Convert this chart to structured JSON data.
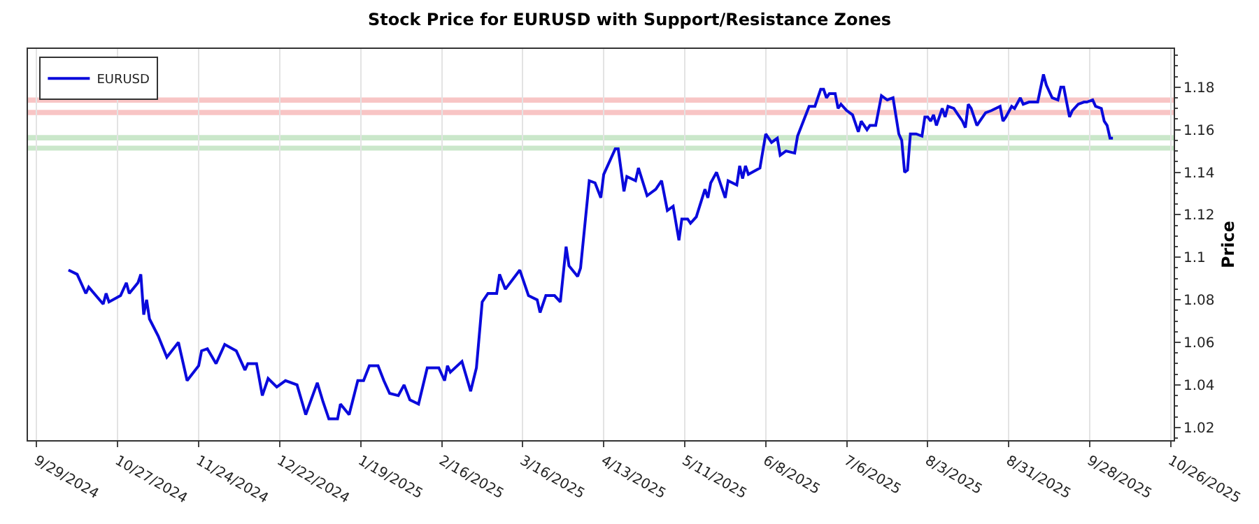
{
  "chart_data": {
    "type": "line",
    "title": "Stock Price for EURUSD with Support/Resistance Zones",
    "ylabel": "Price",
    "x": [
      "2024-10-10",
      "2024-10-13",
      "2024-10-14",
      "2024-10-16",
      "2024-10-17",
      "2024-10-22",
      "2024-10-23",
      "2024-10-24",
      "2024-10-28",
      "2024-10-30",
      "2024-10-31",
      "2024-11-03",
      "2024-11-04",
      "2024-11-05",
      "2024-11-06",
      "2024-11-07",
      "2024-11-10",
      "2024-11-13",
      "2024-11-17",
      "2024-11-20",
      "2024-11-24",
      "2024-11-25",
      "2024-11-27",
      "2024-11-30",
      "2024-12-03",
      "2024-12-07",
      "2024-12-10",
      "2024-12-11",
      "2024-12-14",
      "2024-12-16",
      "2024-12-18",
      "2024-12-21",
      "2024-12-24",
      "2024-12-28",
      "2024-12-31",
      "2025-01-04",
      "2025-01-06",
      "2025-01-08",
      "2025-01-11",
      "2025-01-12",
      "2025-01-15",
      "2025-01-18",
      "2025-01-20",
      "2025-01-22",
      "2025-01-25",
      "2025-01-27",
      "2025-01-29",
      "2025-02-01",
      "2025-02-03",
      "2025-02-05",
      "2025-02-08",
      "2025-02-11",
      "2025-02-15",
      "2025-02-17",
      "2025-02-18",
      "2025-02-19",
      "2025-02-23",
      "2025-02-26",
      "2025-02-28",
      "2025-03-02",
      "2025-03-04",
      "2025-03-07",
      "2025-03-08",
      "2025-03-10",
      "2025-03-15",
      "2025-03-18",
      "2025-03-21",
      "2025-03-22",
      "2025-03-24",
      "2025-03-27",
      "2025-03-29",
      "2025-03-31",
      "2025-04-01",
      "2025-04-04",
      "2025-04-05",
      "2025-04-08",
      "2025-04-10",
      "2025-04-12",
      "2025-04-13",
      "2025-04-17",
      "2025-04-18",
      "2025-04-20",
      "2025-04-21",
      "2025-04-24",
      "2025-04-25",
      "2025-04-28",
      "2025-05-01",
      "2025-05-03",
      "2025-05-05",
      "2025-05-07",
      "2025-05-09",
      "2025-05-10",
      "2025-05-12",
      "2025-05-13",
      "2025-05-15",
      "2025-05-18",
      "2025-05-19",
      "2025-05-20",
      "2025-05-22",
      "2025-05-25",
      "2025-05-26",
      "2025-05-29",
      "2025-05-30",
      "2025-05-31",
      "2025-06-01",
      "2025-06-02",
      "2025-06-06",
      "2025-06-08",
      "2025-06-10",
      "2025-06-12",
      "2025-06-13",
      "2025-06-15",
      "2025-06-18",
      "2025-06-19",
      "2025-06-21",
      "2025-06-23",
      "2025-06-25",
      "2025-06-27",
      "2025-06-28",
      "2025-06-29",
      "2025-06-30",
      "2025-07-02",
      "2025-07-03",
      "2025-07-04",
      "2025-07-06",
      "2025-07-08",
      "2025-07-10",
      "2025-07-11",
      "2025-07-13",
      "2025-07-14",
      "2025-07-16",
      "2025-07-18",
      "2025-07-20",
      "2025-07-22",
      "2025-07-24",
      "2025-07-25",
      "2025-07-26",
      "2025-07-27",
      "2025-07-28",
      "2025-07-30",
      "2025-08-01",
      "2025-08-02",
      "2025-08-03",
      "2025-08-04",
      "2025-08-05",
      "2025-08-06",
      "2025-08-08",
      "2025-08-09",
      "2025-08-10",
      "2025-08-12",
      "2025-08-14",
      "2025-08-15",
      "2025-08-16",
      "2025-08-17",
      "2025-08-18",
      "2025-08-20",
      "2025-08-21",
      "2025-08-23",
      "2025-08-25",
      "2025-08-28",
      "2025-08-29",
      "2025-08-30",
      "2025-09-01",
      "2025-09-02",
      "2025-09-04",
      "2025-09-05",
      "2025-09-07",
      "2025-09-10",
      "2025-09-12",
      "2025-09-13",
      "2025-09-15",
      "2025-09-17",
      "2025-09-18",
      "2025-09-19",
      "2025-09-21",
      "2025-09-22",
      "2025-09-24",
      "2025-09-26",
      "2025-09-27",
      "2025-09-29",
      "2025-09-30",
      "2025-10-02",
      "2025-10-03",
      "2025-10-04",
      "2025-10-05",
      "2025-10-06"
    ],
    "series": [
      {
        "name": "EURUSD",
        "color": "#0a0adc",
        "values": [
          1.094,
          1.092,
          1.089,
          1.083,
          1.086,
          1.078,
          1.083,
          1.079,
          1.082,
          1.088,
          1.083,
          1.088,
          1.092,
          1.073,
          1.08,
          1.071,
          1.063,
          1.053,
          1.06,
          1.042,
          1.049,
          1.056,
          1.057,
          1.05,
          1.059,
          1.056,
          1.047,
          1.05,
          1.05,
          1.035,
          1.043,
          1.039,
          1.042,
          1.04,
          1.026,
          1.041,
          1.032,
          1.024,
          1.024,
          1.031,
          1.026,
          1.042,
          1.042,
          1.049,
          1.049,
          1.042,
          1.036,
          1.035,
          1.04,
          1.033,
          1.031,
          1.048,
          1.048,
          1.042,
          1.049,
          1.046,
          1.051,
          1.037,
          1.048,
          1.079,
          1.083,
          1.083,
          1.092,
          1.085,
          1.094,
          1.082,
          1.08,
          1.074,
          1.082,
          1.082,
          1.079,
          1.105,
          1.096,
          1.091,
          1.095,
          1.136,
          1.135,
          1.128,
          1.139,
          1.151,
          1.151,
          1.131,
          1.138,
          1.136,
          1.142,
          1.129,
          1.132,
          1.136,
          1.122,
          1.124,
          1.108,
          1.118,
          1.118,
          1.116,
          1.119,
          1.132,
          1.128,
          1.135,
          1.14,
          1.128,
          1.136,
          1.134,
          1.143,
          1.137,
          1.143,
          1.139,
          1.142,
          1.158,
          1.154,
          1.156,
          1.148,
          1.15,
          1.149,
          1.157,
          1.164,
          1.171,
          1.171,
          1.179,
          1.179,
          1.175,
          1.177,
          1.177,
          1.17,
          1.172,
          1.169,
          1.167,
          1.159,
          1.164,
          1.16,
          1.162,
          1.162,
          1.176,
          1.174,
          1.175,
          1.158,
          1.155,
          1.14,
          1.141,
          1.158,
          1.158,
          1.157,
          1.166,
          1.166,
          1.164,
          1.167,
          1.162,
          1.17,
          1.166,
          1.171,
          1.17,
          1.166,
          1.164,
          1.161,
          1.172,
          1.17,
          1.162,
          1.164,
          1.168,
          1.169,
          1.171,
          1.164,
          1.166,
          1.171,
          1.17,
          1.175,
          1.172,
          1.173,
          1.173,
          1.186,
          1.181,
          1.175,
          1.174,
          1.18,
          1.18,
          1.166,
          1.169,
          1.172,
          1.173,
          1.173,
          1.174,
          1.171,
          1.17,
          1.164,
          1.162,
          1.156,
          1.156
        ]
      }
    ],
    "xlim": [
      "2024-09-26",
      "2025-10-27"
    ],
    "xticks": [
      {
        "value": "2024-09-29",
        "label": "9/29/2024"
      },
      {
        "value": "2024-10-27",
        "label": "10/27/2024"
      },
      {
        "value": "2024-11-24",
        "label": "11/24/2024"
      },
      {
        "value": "2024-12-22",
        "label": "12/22/2024"
      },
      {
        "value": "2025-01-19",
        "label": "1/19/2025"
      },
      {
        "value": "2025-02-16",
        "label": "2/16/2025"
      },
      {
        "value": "2025-03-16",
        "label": "3/16/2025"
      },
      {
        "value": "2025-04-13",
        "label": "4/13/2025"
      },
      {
        "value": "2025-05-11",
        "label": "5/11/2025"
      },
      {
        "value": "2025-06-08",
        "label": "6/8/2025"
      },
      {
        "value": "2025-07-06",
        "label": "7/6/2025"
      },
      {
        "value": "2025-08-03",
        "label": "8/3/2025"
      },
      {
        "value": "2025-08-31",
        "label": "8/31/2025"
      },
      {
        "value": "2025-09-28",
        "label": "9/28/2025"
      },
      {
        "value": "2025-10-26",
        "label": "10/26/2025"
      }
    ],
    "ylim": [
      1.014,
      1.198
    ],
    "yticks": [
      1.02,
      1.04,
      1.06,
      1.08,
      1.1,
      1.12,
      1.14,
      1.16,
      1.18
    ],
    "bands": [
      {
        "axis": "y",
        "from": 1.173,
        "to": 1.1748,
        "color": "#f4a0a0"
      },
      {
        "axis": "y",
        "from": 1.1672,
        "to": 1.169,
        "color": "#f4a0a0"
      },
      {
        "axis": "y",
        "from": 1.1553,
        "to": 1.1572,
        "color": "#a8d8a8"
      },
      {
        "axis": "y",
        "from": 1.1505,
        "to": 1.1522,
        "color": "#a8d8a8"
      }
    ],
    "grid": "x",
    "legend": "top left",
    "line_style": "solid",
    "marker": "none"
  }
}
